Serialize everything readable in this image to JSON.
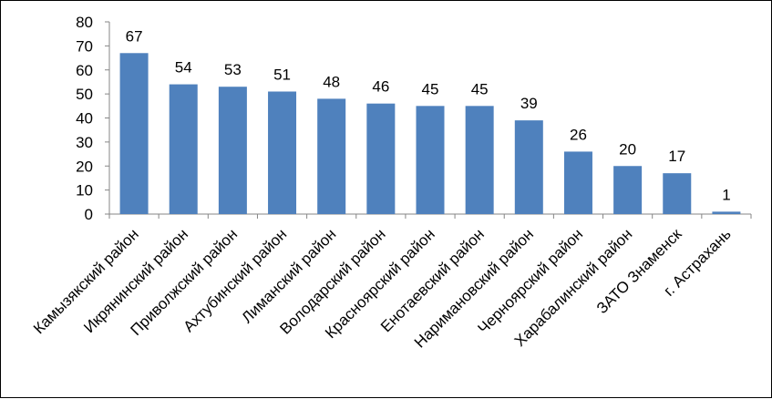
{
  "chart_data": {
    "type": "bar",
    "categories": [
      "Камызякский район",
      "Икрянинский район",
      "Приволжский район",
      "Ахтубинский район",
      "Лиманский район",
      "Володарский район",
      "Красноярский район",
      "Енотаевский район",
      "Наримановский район",
      "Черноярский район",
      "Харабалинский район",
      "ЗАТО Знаменск",
      "г. Астрахань"
    ],
    "values": [
      67,
      54,
      53,
      51,
      48,
      46,
      45,
      45,
      39,
      26,
      20,
      17,
      1
    ],
    "data_labels": [
      "67",
      "54",
      "53",
      "51",
      "48",
      "46",
      "45",
      "45",
      "39",
      "26",
      "20",
      "17",
      "1"
    ],
    "ylim": [
      0,
      80
    ],
    "yticks": [
      "0",
      "10",
      "20",
      "30",
      "40",
      "50",
      "60",
      "70",
      "80"
    ],
    "grid": false,
    "legend": "none",
    "bar_color": "#4F81BD",
    "title": "",
    "xlabel": "",
    "ylabel": ""
  }
}
